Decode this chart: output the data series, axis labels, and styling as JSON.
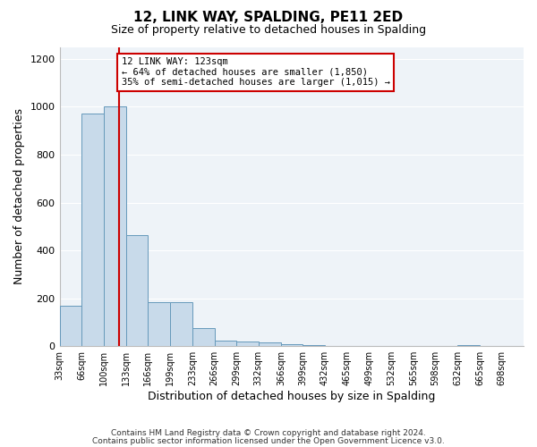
{
  "title": "12, LINK WAY, SPALDING, PE11 2ED",
  "subtitle": "Size of property relative to detached houses in Spalding",
  "xlabel": "Distribution of detached houses by size in Spalding",
  "ylabel": "Number of detached properties",
  "bar_lefts": [
    33,
    66,
    100,
    133,
    166,
    199,
    233,
    266,
    299,
    332,
    366,
    399,
    432,
    465,
    499,
    532,
    565,
    598,
    632,
    665,
    698
  ],
  "bar_widths": [
    33,
    34,
    33,
    33,
    33,
    34,
    33,
    33,
    33,
    34,
    33,
    33,
    33,
    34,
    33,
    33,
    33,
    34,
    33,
    33,
    33
  ],
  "bar_heights": [
    170,
    970,
    1000,
    465,
    185,
    185,
    75,
    25,
    20,
    15,
    10,
    5,
    0,
    0,
    0,
    0,
    0,
    0,
    5,
    0,
    0
  ],
  "bar_color": "#c8daea",
  "bar_edge_color": "#6699bb",
  "vline_x": 123,
  "vline_color": "#cc0000",
  "annotation_title": "12 LINK WAY: 123sqm",
  "annotation_line1": "← 64% of detached houses are smaller (1,850)",
  "annotation_line2": "35% of semi-detached houses are larger (1,015) →",
  "annotation_box_facecolor": "#ffffff",
  "annotation_box_edgecolor": "#cc0000",
  "ylim": [
    0,
    1250
  ],
  "yticks": [
    0,
    200,
    400,
    600,
    800,
    1000,
    1200
  ],
  "xlim_left": 33,
  "xlim_right": 731,
  "x_tick_positions": [
    33,
    66,
    100,
    133,
    166,
    199,
    233,
    266,
    299,
    332,
    366,
    399,
    432,
    465,
    499,
    532,
    565,
    598,
    632,
    665,
    698
  ],
  "x_tick_labels": [
    "33sqm",
    "66sqm",
    "100sqm",
    "133sqm",
    "166sqm",
    "199sqm",
    "233sqm",
    "266sqm",
    "299sqm",
    "332sqm",
    "366sqm",
    "399sqm",
    "432sqm",
    "465sqm",
    "499sqm",
    "532sqm",
    "565sqm",
    "598sqm",
    "632sqm",
    "665sqm",
    "698sqm"
  ],
  "footer_line1": "Contains HM Land Registry data © Crown copyright and database right 2024.",
  "footer_line2": "Contains public sector information licensed under the Open Government Licence v3.0.",
  "bg_color": "#ffffff",
  "plot_bg_color": "#eef3f8",
  "grid_color": "#ffffff",
  "title_fontsize": 11,
  "subtitle_fontsize": 9,
  "axis_label_fontsize": 9,
  "tick_fontsize": 7,
  "footer_fontsize": 6.5
}
